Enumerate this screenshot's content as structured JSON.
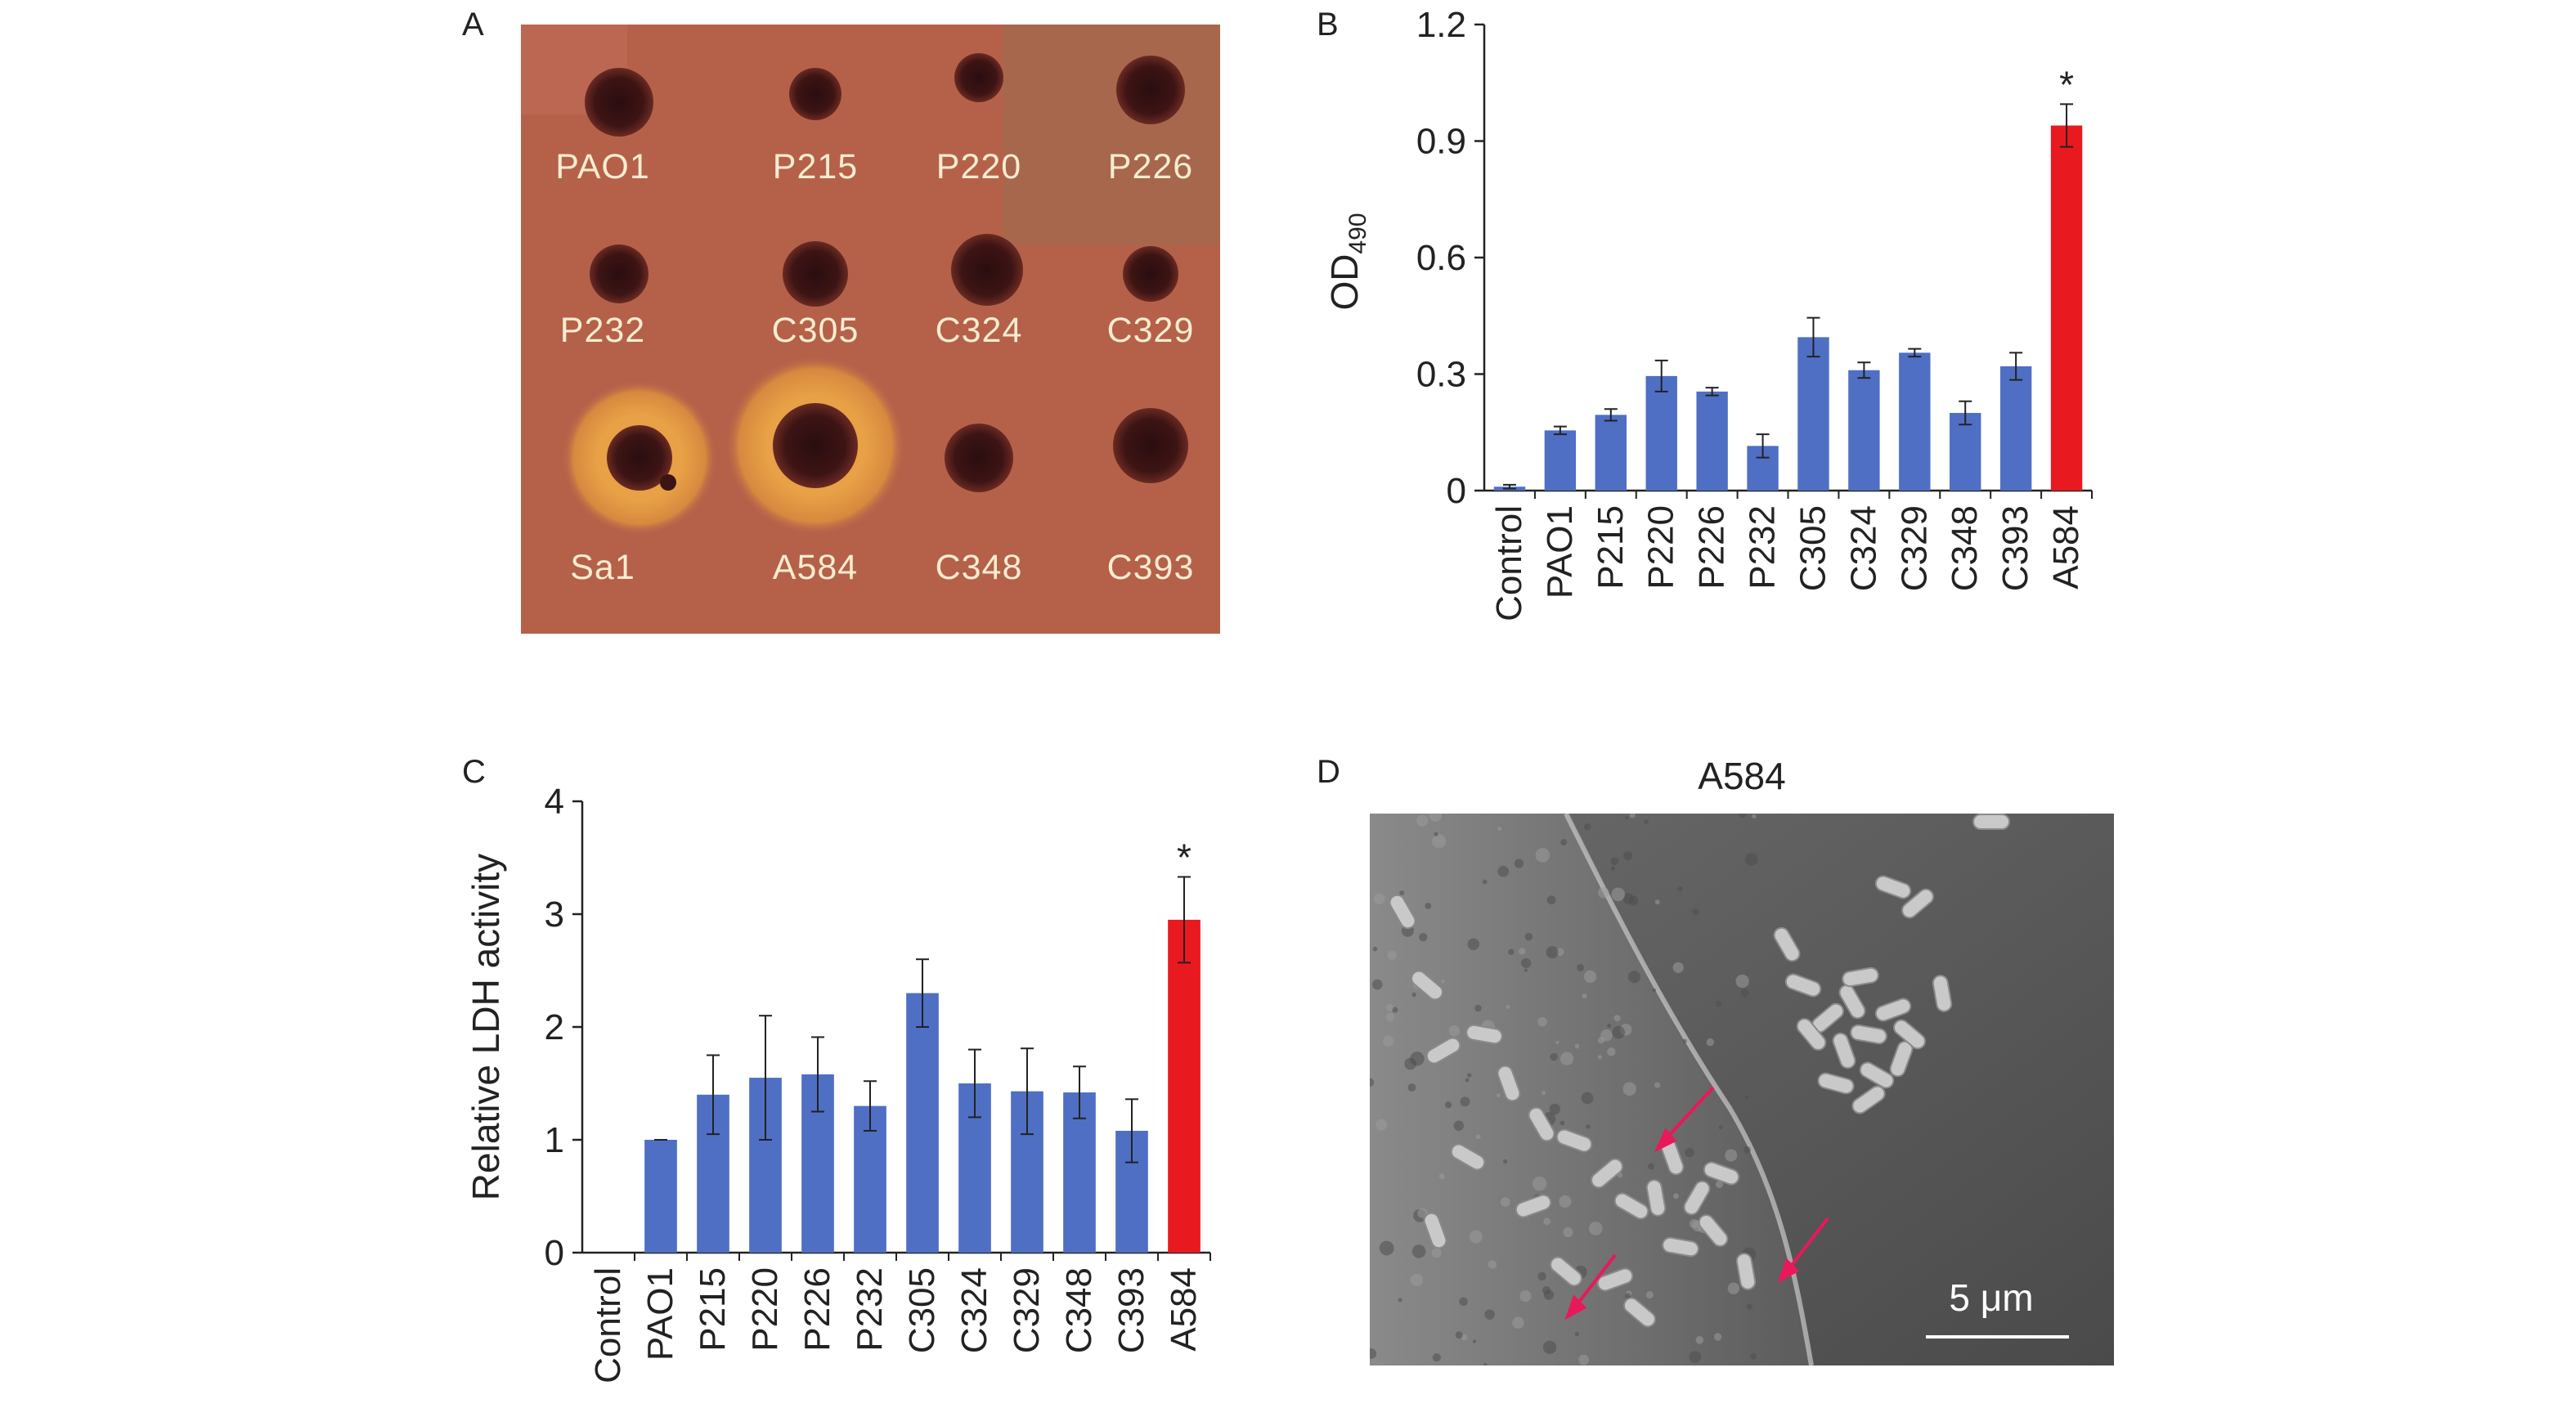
{
  "panels": {
    "a": {
      "letter": "A"
    },
    "b": {
      "letter": "B"
    },
    "c": {
      "letter": "C"
    },
    "d": {
      "letter": "D",
      "title": "A584",
      "scale_bar": "5 μm"
    }
  },
  "plate": {
    "labels": [
      [
        "PAO1",
        "P215",
        "P220",
        "P226"
      ],
      [
        "P232",
        "C305",
        "C324",
        "C329"
      ],
      [
        "Sa1",
        "A584",
        "C348",
        "C393"
      ]
    ]
  },
  "colors": {
    "bar_blue": "#4f6fc4",
    "bar_red": "#e8191f",
    "plate_bg": "#b5614a",
    "halo": "#e8a146",
    "sem_arrow": "#e8195a"
  },
  "chart_data": [
    {
      "type": "bar",
      "panel": "B",
      "categories": [
        "Control",
        "PAO1",
        "P215",
        "P220",
        "P226",
        "P232",
        "C305",
        "C324",
        "C329",
        "C348",
        "C393",
        "A584"
      ],
      "values": [
        0.01,
        0.155,
        0.195,
        0.295,
        0.255,
        0.115,
        0.395,
        0.31,
        0.355,
        0.2,
        0.32,
        0.94
      ],
      "errors": [
        0.005,
        0.01,
        0.015,
        0.04,
        0.01,
        0.03,
        0.05,
        0.02,
        0.01,
        0.03,
        0.035,
        0.055
      ],
      "highlight_index": 11,
      "annotation": "*",
      "ylabel_main": "OD",
      "ylabel_sub": "490",
      "ylim": [
        0,
        1.2
      ],
      "yticks": [
        0,
        0.3,
        0.6,
        0.9,
        1.2
      ],
      "ytick_labels": [
        "0",
        "0.3",
        "0.6",
        "0.9",
        "1.2"
      ]
    },
    {
      "type": "bar",
      "panel": "C",
      "categories": [
        "Control",
        "PAO1",
        "P215",
        "P220",
        "P226",
        "P232",
        "C305",
        "C324",
        "C329",
        "C348",
        "C393",
        "A584"
      ],
      "values": [
        0,
        1.0,
        1.4,
        1.55,
        1.58,
        1.3,
        2.3,
        1.5,
        1.43,
        1.42,
        1.08,
        2.95
      ],
      "errors": [
        0,
        0.0,
        0.35,
        0.55,
        0.33,
        0.22,
        0.3,
        0.3,
        0.38,
        0.23,
        0.28,
        0.38
      ],
      "highlight_index": 11,
      "annotation": "*",
      "ylabel": "Relative LDH activity",
      "ylim": [
        0,
        4
      ],
      "yticks": [
        0,
        1,
        2,
        3,
        4
      ],
      "ytick_labels": [
        "0",
        "1",
        "2",
        "3",
        "4"
      ]
    }
  ]
}
